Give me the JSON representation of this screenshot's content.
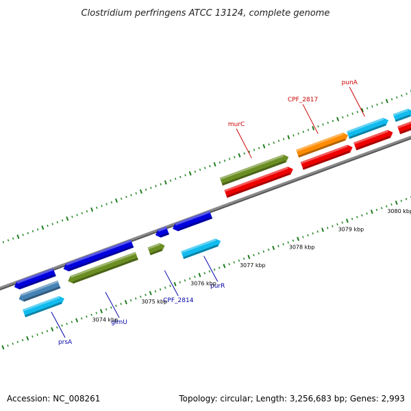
{
  "title": "Clostridium perfringens ATCC 13124, complete genome",
  "footer": {
    "accession": "Accession: NC_008261",
    "summary": "Topology: circular; Length: 3,256,683 bp; Genes: 2,993"
  },
  "colors": {
    "backbone": "#8a8a8a",
    "tick_major": "#1a7a1a",
    "tick_minor": "#2e8b2e",
    "forward_label": "#cc0000",
    "reverse_label": "#0000aa",
    "cds_blue": "#0000dd",
    "cds_cyan": "#11bbee",
    "cds_green": "#6b8e23",
    "cds_orange": "#ff8c00",
    "cds_red": "#ee0000",
    "cds_steel": "#4682b4"
  },
  "map": {
    "range_kbp": [
      3072.6,
      3080.9
    ],
    "scale_labels": [
      {
        "kbp": 3074,
        "text": "3074 kbp"
      },
      {
        "kbp": 3075,
        "text": "3075 kbp"
      },
      {
        "kbp": 3076,
        "text": "3076 kbp"
      },
      {
        "kbp": 3077,
        "text": "3077 kbp"
      },
      {
        "kbp": 3078,
        "text": "3078 kbp"
      },
      {
        "kbp": 3079,
        "text": "3079 kbp"
      },
      {
        "kbp": 3080,
        "text": "3080 kbp"
      }
    ],
    "features": [
      {
        "lane": "r3",
        "start": 3072.6,
        "end": 3073.42,
        "dir": "-",
        "color": "cds_blue"
      },
      {
        "lane": "r3",
        "start": 3073.6,
        "end": 3075.0,
        "dir": "-",
        "color": "cds_blue"
      },
      {
        "lane": "r3",
        "start": 3075.47,
        "end": 3075.72,
        "dir": "-",
        "color": "cds_blue"
      },
      {
        "lane": "r3",
        "start": 3075.82,
        "end": 3076.6,
        "dir": "-",
        "color": "cds_blue"
      },
      {
        "lane": "r2",
        "start": 3072.6,
        "end": 3073.42,
        "dir": "-",
        "color": "cds_steel"
      },
      {
        "lane": "r2",
        "start": 3073.6,
        "end": 3075.0,
        "dir": "-",
        "color": "cds_green"
      },
      {
        "lane": "r2",
        "start": 3075.25,
        "end": 3075.57,
        "dir": "+",
        "color": "cds_green"
      },
      {
        "lane": "r1",
        "start": 3072.6,
        "end": 3073.42,
        "dir": "+",
        "color": "cds_cyan"
      },
      {
        "lane": "r1",
        "start": 3075.82,
        "end": 3076.6,
        "dir": "+",
        "color": "cds_cyan"
      },
      {
        "lane": "f2",
        "start": 3077.0,
        "end": 3078.37,
        "dir": "+",
        "color": "cds_green"
      },
      {
        "lane": "f2",
        "start": 3078.55,
        "end": 3079.58,
        "dir": "+",
        "color": "cds_orange"
      },
      {
        "lane": "f2",
        "start": 3079.58,
        "end": 3080.4,
        "dir": "+",
        "color": "cds_cyan"
      },
      {
        "lane": "f2",
        "start": 3080.52,
        "end": 3080.9,
        "dir": "+",
        "color": "cds_cyan"
      },
      {
        "lane": "f1",
        "start": 3077.0,
        "end": 3078.37,
        "dir": "+",
        "color": "cds_red"
      },
      {
        "lane": "f1",
        "start": 3078.55,
        "end": 3079.58,
        "dir": "+",
        "color": "cds_red"
      },
      {
        "lane": "f1",
        "start": 3079.63,
        "end": 3080.4,
        "dir": "+",
        "color": "cds_red"
      },
      {
        "lane": "f1",
        "start": 3080.52,
        "end": 3080.9,
        "dir": "+",
        "color": "cds_red"
      }
    ],
    "gene_labels": [
      {
        "text": "prsA",
        "kbp": 3073.1,
        "strand": "reverse"
      },
      {
        "text": "glmU",
        "kbp": 3074.2,
        "strand": "reverse"
      },
      {
        "text": "CPF_2814",
        "kbp": 3075.4,
        "strand": "reverse"
      },
      {
        "text": "purR",
        "kbp": 3076.2,
        "strand": "reverse"
      },
      {
        "text": "murC",
        "kbp": 3077.7,
        "strand": "forward"
      },
      {
        "text": "CPF_2817",
        "kbp": 3079.05,
        "strand": "forward"
      },
      {
        "text": "punA",
        "kbp": 3080.0,
        "strand": "forward"
      }
    ]
  }
}
